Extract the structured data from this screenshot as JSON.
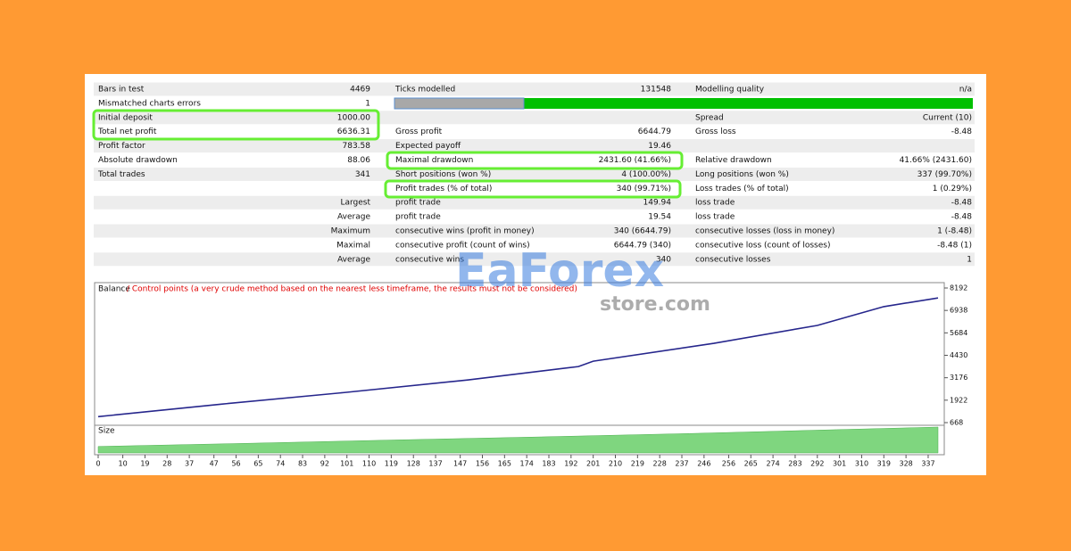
{
  "table": {
    "rows": [
      [
        "Bars in test",
        "4469",
        "Ticks modelled",
        "131548",
        "Modelling quality",
        "n/a"
      ],
      [
        "Mismatched charts errors",
        "1",
        null,
        null,
        null,
        null
      ],
      [
        "Initial deposit",
        "1000.00",
        null,
        null,
        "Spread",
        "Current (10)"
      ],
      [
        "Total net profit",
        "6636.31",
        "Gross profit",
        "6644.79",
        "Gross loss",
        "-8.48"
      ],
      [
        "Profit factor",
        "783.58",
        "Expected payoff",
        "19.46",
        null,
        null
      ],
      [
        "Absolute drawdown",
        "88.06",
        "Maximal drawdown",
        "2431.60 (41.66%)",
        "Relative drawdown",
        "41.66% (2431.60)"
      ],
      [
        "Total trades",
        "341",
        "Short positions (won %)",
        "4 (100.00%)",
        "Long positions (won %)",
        "337 (99.70%)"
      ],
      [
        null,
        null,
        "Profit trades (% of total)",
        "340 (99.71%)",
        "Loss trades (% of total)",
        "1 (0.29%)"
      ],
      [
        null,
        "Largest",
        "profit trade",
        "149.94",
        "loss trade",
        "-8.48"
      ],
      [
        null,
        "Average",
        "profit trade",
        "19.54",
        "loss trade",
        "-8.48"
      ],
      [
        null,
        "Maximum",
        "consecutive wins (profit in money)",
        "340 (6644.79)",
        "consecutive losses (loss in money)",
        "1 (-8.48)"
      ],
      [
        null,
        "Maximal",
        "consecutive profit (count of wins)",
        "6644.79 (340)",
        "consecutive loss (count of losses)",
        "-8.48 (1)"
      ],
      [
        null,
        "Average",
        "consecutive wins",
        "340",
        "consecutive losses",
        "1"
      ]
    ]
  },
  "chart_data": {
    "type": "line",
    "legend": "Balance",
    "note": "/ Control points (a very crude method based on the nearest less timeframe, the results must not be considered)",
    "size_label": "Size",
    "x": [
      0,
      50,
      100,
      150,
      195,
      201,
      250,
      292,
      319,
      341
    ],
    "series": [
      {
        "name": "Balance",
        "color": "#26268c",
        "values": [
          1000,
          1700,
          2350,
          3050,
          3800,
          4100,
          5100,
          6100,
          7150,
          7636
        ]
      }
    ],
    "xlim": [
      0,
      341
    ],
    "xticks": [
      0,
      10,
      19,
      28,
      37,
      47,
      56,
      65,
      74,
      83,
      92,
      101,
      110,
      119,
      128,
      137,
      147,
      156,
      165,
      174,
      183,
      192,
      201,
      210,
      219,
      228,
      237,
      246,
      256,
      265,
      274,
      283,
      292,
      301,
      310,
      319,
      328,
      337
    ],
    "ylim": [
      668,
      8192
    ],
    "yticks": [
      668,
      1922,
      3176,
      4430,
      5684,
      6938,
      8192
    ],
    "size": {
      "x": [
        0,
        60,
        120,
        180,
        240,
        300,
        341
      ],
      "values": [
        0.25,
        0.37,
        0.5,
        0.62,
        0.75,
        0.9,
        1.0
      ],
      "color": "#7fd67f",
      "ylim": [
        0,
        1
      ]
    }
  },
  "watermark": {
    "brand": "EaForex",
    "domain": "store.com"
  }
}
